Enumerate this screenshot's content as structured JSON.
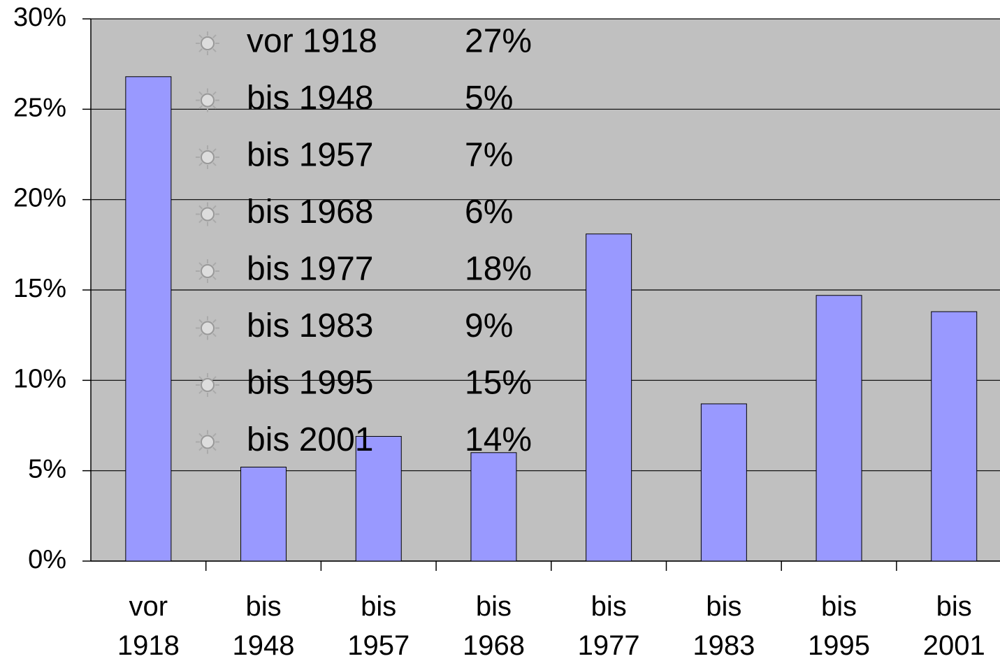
{
  "chart_data": {
    "type": "bar",
    "categories": [
      "vor 1918",
      "bis 1948",
      "bis 1957",
      "bis 1968",
      "bis 1977",
      "bis 1983",
      "bis 1995",
      "bis 2001"
    ],
    "values": [
      26.8,
      5.2,
      6.9,
      6.0,
      18.1,
      8.7,
      14.7,
      13.8
    ],
    "color": "#9999ff",
    "ylim": [
      0,
      30
    ],
    "yticks": [
      {
        "value": 0,
        "label": "0%"
      },
      {
        "value": 5,
        "label": "5%"
      },
      {
        "value": 10,
        "label": "10%"
      },
      {
        "value": 15,
        "label": "15%"
      },
      {
        "value": 20,
        "label": "20%"
      },
      {
        "value": 25,
        "label": "25%"
      },
      {
        "value": 30,
        "label": "30%"
      }
    ],
    "grid": true,
    "annotations": [
      {
        "label": "vor 1918",
        "value": "27%"
      },
      {
        "label": "bis 1948",
        "value": "5%"
      },
      {
        "label": "bis 1957",
        "value": "7%"
      },
      {
        "label": "bis 1968",
        "value": "6%"
      },
      {
        "label": "bis 1977",
        "value": "18%"
      },
      {
        "label": "bis 1983",
        "value": "9%"
      },
      {
        "label": "bis 1995",
        "value": "15%"
      },
      {
        "label": "bis 2001",
        "value": "14%"
      }
    ]
  }
}
